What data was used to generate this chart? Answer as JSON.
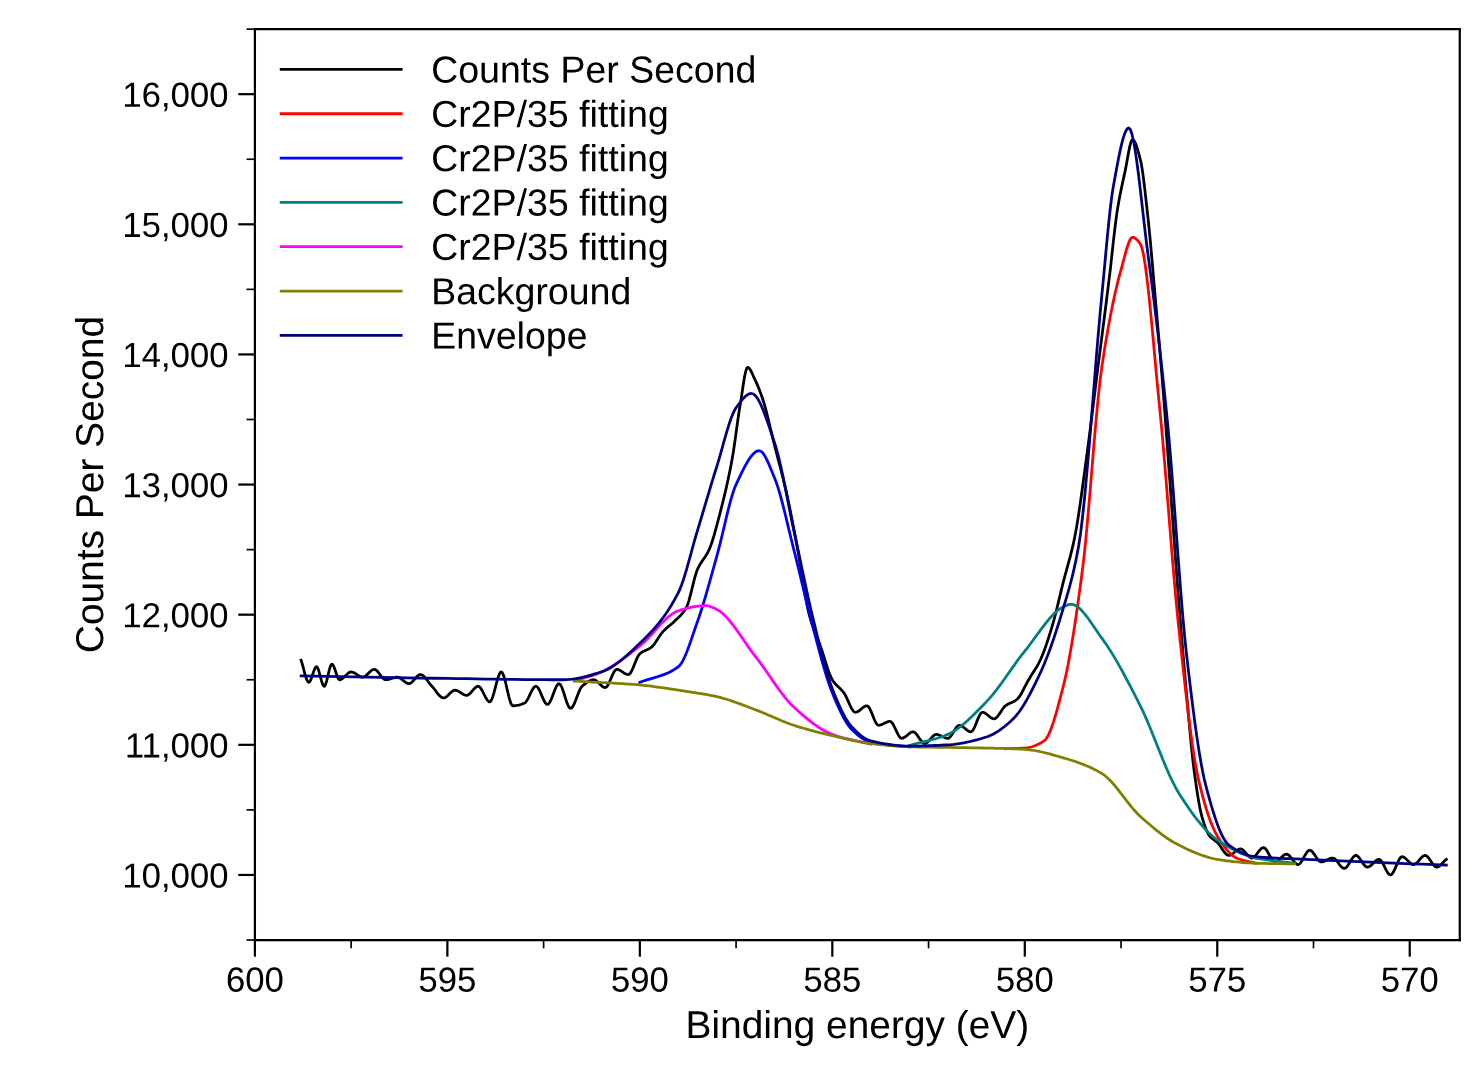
{
  "chart_data": {
    "type": "line",
    "xlabel": "Binding energy (eV)",
    "ylabel": "Counts Per Second",
    "xlim": [
      600,
      568.7
    ],
    "xticks": [
      600,
      595,
      590,
      585,
      580,
      575,
      570
    ],
    "ylim": [
      9500,
      16500
    ],
    "yticks": [
      {
        "value": 10000,
        "label": "10,000"
      },
      {
        "value": 11000,
        "label": "11,000"
      },
      {
        "value": 12000,
        "label": "12,000"
      },
      {
        "value": 13000,
        "label": "13,000"
      },
      {
        "value": 14000,
        "label": "14,000"
      },
      {
        "value": 15000,
        "label": "15,000"
      },
      {
        "value": 16000,
        "label": "16,000"
      }
    ],
    "grid": false,
    "legend": "top left",
    "marker": "none",
    "line_style": "solid",
    "series": [
      {
        "name": "Counts Per Second",
        "color": "#000000",
        "x": [
          598.8,
          598.6,
          598.4,
          598.2,
          598.0,
          597.8,
          597.5,
          597.2,
          596.9,
          596.6,
          596.3,
          596.0,
          595.7,
          595.4,
          595.1,
          594.8,
          594.5,
          594.2,
          593.9,
          593.6,
          593.3,
          593.0,
          592.7,
          592.4,
          592.1,
          591.8,
          591.5,
          591.2,
          590.9,
          590.6,
          590.3,
          590.0,
          589.7,
          589.4,
          589.1,
          588.8,
          588.5,
          588.2,
          587.9,
          587.6,
          587.4,
          587.2,
          587.0,
          586.8,
          586.5,
          586.2,
          585.9,
          585.6,
          585.3,
          585.0,
          584.7,
          584.4,
          584.1,
          583.8,
          583.5,
          583.2,
          582.9,
          582.6,
          582.3,
          582.0,
          581.7,
          581.4,
          581.1,
          580.8,
          580.5,
          580.2,
          579.9,
          579.6,
          579.3,
          579.0,
          578.7,
          578.4,
          578.1,
          577.8,
          577.6,
          577.4,
          577.2,
          577.0,
          576.8,
          576.6,
          576.4,
          576.2,
          576.0,
          575.8,
          575.6,
          575.4,
          575.2,
          575.0,
          574.7,
          574.4,
          574.1,
          573.8,
          573.5,
          573.2,
          572.9,
          572.6,
          572.3,
          572.0,
          571.7,
          571.4,
          571.1,
          570.8,
          570.5,
          570.2,
          569.9,
          569.6,
          569.3,
          569.05
        ],
        "values": [
          11650,
          11480,
          11600,
          11450,
          11620,
          11500,
          11560,
          11520,
          11580,
          11500,
          11520,
          11470,
          11540,
          11450,
          11360,
          11420,
          11380,
          11450,
          11330,
          11560,
          11300,
          11320,
          11450,
          11310,
          11470,
          11280,
          11450,
          11500,
          11440,
          11580,
          11540,
          11700,
          11750,
          11870,
          11950,
          12050,
          12350,
          12500,
          12800,
          13200,
          13600,
          13900,
          13800,
          13650,
          13300,
          12950,
          12500,
          12000,
          11750,
          11500,
          11400,
          11250,
          11300,
          11150,
          11180,
          11050,
          11100,
          11010,
          11080,
          11050,
          11150,
          11100,
          11250,
          11200,
          11300,
          11350,
          11500,
          11650,
          11900,
          12250,
          12600,
          13200,
          13900,
          14600,
          15100,
          15400,
          15650,
          15500,
          15050,
          14400,
          13700,
          12900,
          12100,
          11400,
          10800,
          10450,
          10300,
          10250,
          10150,
          10200,
          10130,
          10210,
          10100,
          10160,
          10080,
          10190,
          10100,
          10130,
          10050,
          10150,
          10060,
          10120,
          10000,
          10140,
          10080,
          10150,
          10060,
          10120
        ]
      },
      {
        "name": "Cr2P/35 fitting",
        "color": "#ff0000",
        "x": [
          580.5,
          580,
          579.5,
          579,
          578.5,
          578,
          577.5,
          577.2,
          577,
          576.5,
          576,
          575.5,
          575,
          574.5,
          574
        ],
        "values": [
          10970,
          10975,
          11030,
          11450,
          12350,
          13900,
          14650,
          14900,
          14850,
          13600,
          11900,
          10750,
          10300,
          10130,
          10090
        ]
      },
      {
        "name": "Cr2P/35 fitting",
        "color": "#0000ff",
        "x": [
          590,
          589,
          588.5,
          588,
          587.5,
          586.9,
          586.5,
          586,
          585.5,
          585,
          584.5,
          584,
          583
        ],
        "values": [
          11480,
          11600,
          11950,
          12450,
          13000,
          13260,
          13050,
          12500,
          11900,
          11400,
          11120,
          11020,
          10985
        ]
      },
      {
        "name": "Cr2P/35 fitting",
        "color": "#008080",
        "x": [
          583,
          582,
          581,
          580,
          579,
          578.8,
          578,
          577,
          576,
          575,
          574,
          573
        ],
        "values": [
          10995,
          11080,
          11330,
          11720,
          12060,
          12080,
          11820,
          11300,
          10630,
          10270,
          10130,
          10090
        ]
      },
      {
        "name": "Cr2P/35 fitting",
        "color": "#ff00ff",
        "x": [
          591.7,
          591,
          590,
          589,
          588.3,
          588,
          587,
          586,
          585,
          584
        ],
        "values": [
          11490,
          11560,
          11760,
          12030,
          12070,
          12040,
          11680,
          11290,
          11080,
          11005
        ]
      },
      {
        "name": "Background",
        "color": "#808000",
        "x": [
          591.7,
          590,
          589,
          588,
          587,
          586,
          585,
          584,
          583,
          582,
          581,
          580,
          579,
          578,
          577,
          576,
          575,
          574,
          573
        ],
        "values": [
          11490,
          11460,
          11420,
          11370,
          11270,
          11150,
          11070,
          11010,
          10985,
          10980,
          10975,
          10965,
          10900,
          10780,
          10450,
          10230,
          10120,
          10090,
          10085
        ]
      },
      {
        "name": "Envelope",
        "color": "#000080",
        "x": [
          598.8,
          595,
          592,
          591,
          590,
          589,
          588.5,
          588,
          587.5,
          587.1,
          586.5,
          586,
          585.5,
          585,
          584.5,
          584,
          583,
          582,
          581,
          580.3,
          579.6,
          579,
          578.6,
          578,
          577.7,
          577.3,
          576.8,
          576.3,
          575.8,
          575.3,
          574.7,
          574,
          572.7,
          569.05
        ],
        "values": [
          11530,
          11510,
          11500,
          11560,
          11780,
          12170,
          12650,
          13140,
          13590,
          13700,
          13320,
          12650,
          11970,
          11430,
          11140,
          11030,
          10990,
          11000,
          11060,
          11200,
          11550,
          12050,
          12530,
          14450,
          15290,
          15740,
          14770,
          13500,
          11700,
          10690,
          10230,
          10140,
          10120,
          10075
        ]
      }
    ]
  }
}
